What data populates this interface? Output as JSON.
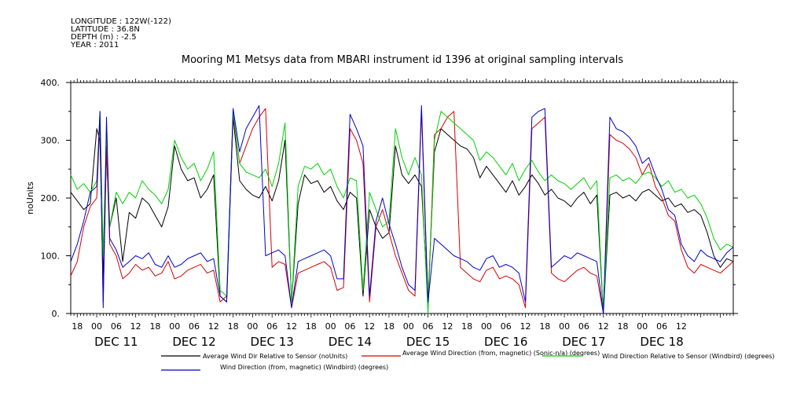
{
  "header": {
    "meta": [
      "LONGITUDE : 122W(-122)",
      "LATITUDE : 36.8N",
      "DEPTH (m) : -2.5",
      "YEAR : 2011"
    ],
    "title": "Mooring M1 Metsys data from MBARI instrument id 1396 at original sampling intervals"
  },
  "chart_data": {
    "type": "line",
    "title": "Mooring M1 Metsys data from MBARI instrument id 1396 at original sampling intervals",
    "ylabel": "noUnits",
    "xlabel": "",
    "ylim": [
      0,
      400
    ],
    "y_ticks": [
      "0.",
      "100.",
      "200.",
      "300.",
      "400."
    ],
    "xlim_hours": [
      -8,
      196
    ],
    "hour_ticks": [
      "18",
      "00",
      "06",
      "12",
      "18",
      "00",
      "06",
      "12",
      "18",
      "00",
      "06",
      "12",
      "18",
      "00",
      "06",
      "12",
      "18",
      "00",
      "06",
      "12",
      "18",
      "00",
      "06",
      "12",
      "18",
      "00",
      "06",
      "12",
      "18",
      "00",
      "06",
      "12"
    ],
    "day_labels": [
      "DEC 11",
      "DEC 12",
      "DEC 13",
      "DEC 14",
      "DEC 15",
      "DEC 16",
      "DEC 17",
      "DEC 18"
    ],
    "grid": false,
    "legend_position": "bottom",
    "series": [
      {
        "name": "Average Wind Dir Relative to Sensor (noUnits)",
        "color": "#000000",
        "hours": [
          -8,
          -6,
          -4,
          -2,
          0,
          1,
          2,
          3,
          4,
          6,
          8,
          10,
          12,
          14,
          16,
          18,
          20,
          22,
          24,
          26,
          28,
          30,
          32,
          34,
          36,
          38,
          40,
          42,
          44,
          46,
          48,
          50,
          52,
          54,
          56,
          58,
          60,
          62,
          64,
          66,
          68,
          70,
          72,
          74,
          76,
          78,
          80,
          82,
          84,
          86,
          88,
          90,
          92,
          94,
          96,
          98,
          100,
          102,
          104,
          106,
          108,
          110,
          112,
          114,
          116,
          118,
          120,
          122,
          124,
          126,
          128,
          130,
          132,
          134,
          136,
          138,
          140,
          142,
          144,
          146,
          148,
          150,
          152,
          154,
          156,
          158,
          160,
          162,
          164,
          166,
          168,
          170,
          172,
          174,
          176,
          178,
          180,
          182,
          184,
          186,
          188,
          190,
          192,
          194,
          196
        ],
        "values": [
          210,
          195,
          180,
          190,
          320,
          300,
          60,
          280,
          150,
          200,
          90,
          175,
          165,
          200,
          190,
          170,
          150,
          185,
          290,
          250,
          230,
          235,
          200,
          215,
          240,
          30,
          20,
          340,
          230,
          215,
          205,
          200,
          220,
          195,
          230,
          300,
          20,
          190,
          240,
          225,
          230,
          210,
          220,
          195,
          180,
          210,
          200,
          30,
          180,
          150,
          130,
          140,
          290,
          240,
          225,
          240,
          220,
          20,
          280,
          320,
          310,
          300,
          290,
          285,
          270,
          235,
          255,
          240,
          225,
          210,
          230,
          205,
          220,
          240,
          225,
          205,
          215,
          200,
          195,
          185,
          200,
          210,
          190,
          205,
          0,
          205,
          210,
          200,
          205,
          195,
          210,
          215,
          205,
          195,
          200,
          185,
          190,
          175,
          180,
          170,
          140,
          100,
          80,
          95,
          90
        ]
      },
      {
        "name": "Average Wind Direction (from, magnetic) (Sonic-n/a) (degrees)",
        "color": "#d40000",
        "hours": [
          -8,
          -6,
          -4,
          -2,
          0,
          1,
          2,
          3,
          4,
          6,
          8,
          10,
          12,
          14,
          16,
          18,
          20,
          22,
          24,
          26,
          28,
          30,
          32,
          34,
          36,
          38,
          40,
          42,
          44,
          46,
          48,
          50,
          52,
          54,
          56,
          58,
          60,
          62,
          64,
          66,
          68,
          70,
          72,
          74,
          76,
          78,
          80,
          82,
          84,
          86,
          88,
          90,
          92,
          94,
          96,
          98,
          100,
          102,
          104,
          106,
          108,
          110,
          112,
          114,
          116,
          118,
          120,
          122,
          124,
          126,
          128,
          130,
          132,
          134,
          136,
          138,
          140,
          142,
          144,
          146,
          148,
          150,
          152,
          154,
          156,
          158,
          160,
          162,
          164,
          166,
          168,
          170,
          172,
          174,
          176,
          178,
          180,
          182,
          184,
          186,
          188,
          190,
          192,
          194,
          196
        ],
        "values": [
          65,
          90,
          150,
          185,
          200,
          340,
          20,
          290,
          120,
          100,
          60,
          70,
          85,
          75,
          80,
          65,
          70,
          90,
          60,
          65,
          75,
          80,
          85,
          70,
          75,
          20,
          30,
          345,
          260,
          290,
          320,
          340,
          355,
          80,
          90,
          85,
          10,
          70,
          75,
          80,
          85,
          90,
          80,
          40,
          45,
          320,
          300,
          260,
          20,
          150,
          180,
          140,
          100,
          70,
          40,
          30,
          350,
          10,
          310,
          320,
          340,
          350,
          80,
          70,
          60,
          55,
          75,
          80,
          60,
          65,
          60,
          50,
          10,
          320,
          330,
          340,
          70,
          60,
          55,
          65,
          75,
          80,
          70,
          65,
          0,
          310,
          300,
          295,
          285,
          270,
          240,
          260,
          220,
          200,
          170,
          160,
          110,
          80,
          70,
          85,
          80,
          75,
          70,
          80,
          90
        ]
      },
      {
        "name": "Wind Direction Relative to Sensor (Windbird) (degrees)",
        "color": "#00d200",
        "hours": [
          -8,
          -6,
          -4,
          -2,
          0,
          1,
          2,
          3,
          4,
          6,
          8,
          10,
          12,
          14,
          16,
          18,
          20,
          22,
          24,
          26,
          28,
          30,
          32,
          34,
          36,
          38,
          40,
          42,
          44,
          46,
          48,
          50,
          52,
          54,
          56,
          58,
          60,
          62,
          64,
          66,
          68,
          70,
          72,
          74,
          76,
          78,
          80,
          82,
          84,
          86,
          88,
          90,
          92,
          94,
          96,
          98,
          100,
          102,
          104,
          106,
          108,
          110,
          112,
          114,
          116,
          118,
          120,
          122,
          124,
          126,
          128,
          130,
          132,
          134,
          136,
          138,
          140,
          142,
          144,
          146,
          148,
          150,
          152,
          154,
          156,
          158,
          160,
          162,
          164,
          166,
          168,
          170,
          172,
          174,
          176,
          178,
          180,
          182,
          184,
          186,
          188,
          190,
          192,
          194,
          196
        ],
        "values": [
          240,
          215,
          225,
          210,
          230,
          350,
          100,
          320,
          150,
          210,
          190,
          210,
          200,
          230,
          215,
          205,
          190,
          215,
          300,
          270,
          250,
          260,
          230,
          250,
          280,
          40,
          30,
          350,
          260,
          245,
          240,
          235,
          250,
          220,
          260,
          330,
          20,
          220,
          255,
          250,
          260,
          240,
          250,
          220,
          200,
          235,
          230,
          40,
          210,
          180,
          150,
          160,
          320,
          270,
          240,
          270,
          240,
          0,
          300,
          350,
          340,
          330,
          320,
          310,
          300,
          265,
          280,
          270,
          255,
          240,
          260,
          230,
          250,
          265,
          245,
          230,
          240,
          230,
          225,
          215,
          225,
          235,
          215,
          230,
          0,
          235,
          240,
          230,
          235,
          225,
          240,
          245,
          235,
          220,
          230,
          210,
          215,
          200,
          205,
          190,
          165,
          130,
          110,
          120,
          115
        ]
      },
      {
        "name": "Wind Direction (from, magnetic) (Windbird) (degrees)",
        "color": "#0000cc",
        "hours": [
          -8,
          -6,
          -4,
          -2,
          0,
          1,
          2,
          3,
          4,
          6,
          8,
          10,
          12,
          14,
          16,
          18,
          20,
          22,
          24,
          26,
          28,
          30,
          32,
          34,
          36,
          38,
          40,
          42,
          44,
          46,
          48,
          50,
          52,
          54,
          56,
          58,
          60,
          62,
          64,
          66,
          68,
          70,
          72,
          74,
          76,
          78,
          80,
          82,
          84,
          86,
          88,
          90,
          92,
          94,
          96,
          98,
          100,
          102,
          104,
          106,
          108,
          110,
          112,
          114,
          116,
          118,
          120,
          122,
          124,
          126,
          128,
          130,
          132,
          134,
          136,
          138,
          140,
          142,
          144,
          146,
          148,
          150,
          152,
          154,
          156,
          158,
          160,
          162,
          164,
          166,
          168,
          170,
          172,
          174,
          176,
          178,
          180,
          182,
          184,
          186,
          188,
          190,
          192,
          194,
          196
        ],
        "values": [
          90,
          120,
          160,
          210,
          220,
          350,
          10,
          340,
          130,
          110,
          80,
          90,
          100,
          95,
          105,
          85,
          80,
          100,
          80,
          85,
          95,
          100,
          105,
          90,
          95,
          30,
          20,
          355,
          280,
          320,
          340,
          360,
          100,
          105,
          110,
          100,
          10,
          90,
          95,
          100,
          105,
          110,
          100,
          60,
          60,
          345,
          320,
          290,
          30,
          160,
          200,
          155,
          120,
          80,
          50,
          40,
          360,
          20,
          130,
          120,
          110,
          100,
          95,
          90,
          80,
          75,
          95,
          100,
          80,
          85,
          80,
          70,
          20,
          340,
          350,
          355,
          80,
          90,
          100,
          95,
          105,
          100,
          95,
          90,
          0,
          340,
          320,
          315,
          305,
          290,
          260,
          270,
          240,
          215,
          180,
          170,
          120,
          100,
          90,
          110,
          100,
          95,
          90,
          105,
          115
        ]
      }
    ]
  },
  "legend": [
    {
      "text": "Average Wind Dir Relative to Sensor (noUnits)",
      "color": "#000000"
    },
    {
      "text": "Average Wind Direction (from, magnetic) (Sonic-n/a) (degrees)",
      "color": "#d40000"
    },
    {
      "text": "Wind Direction Relative to Sensor (Windbird) (degrees)",
      "color": "#00d200"
    },
    {
      "text": "Wind Direction (from, magnetic) (Windbird) (degrees)",
      "color": "#0000cc"
    }
  ]
}
